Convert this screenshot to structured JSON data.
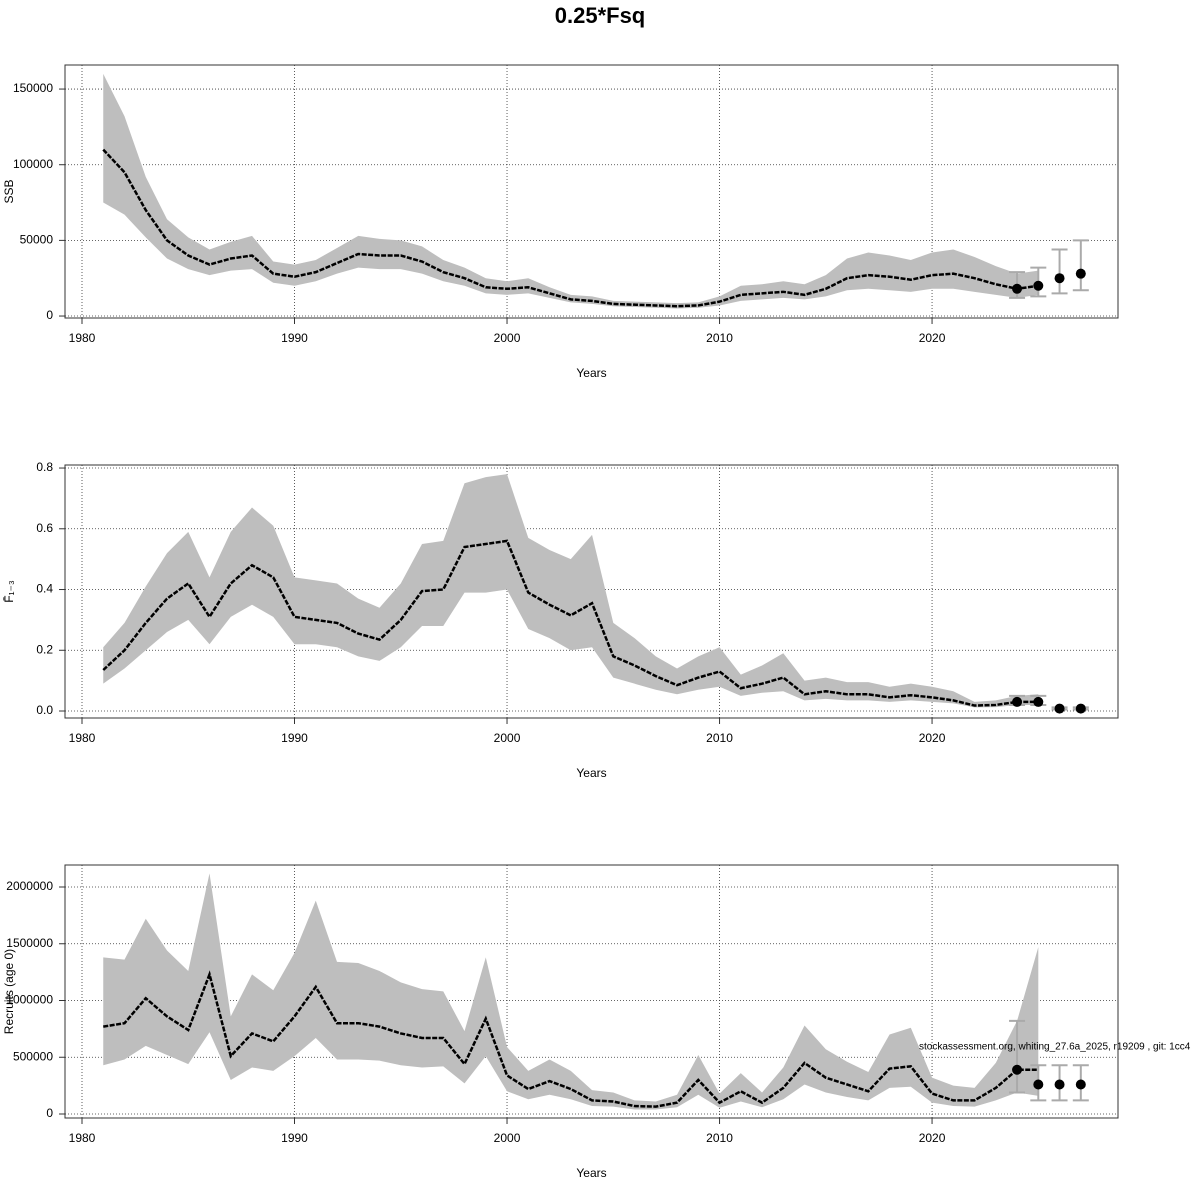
{
  "title": "0.25*Fsq",
  "chart_data": [
    {
      "type": "line",
      "ylabel": "SSB",
      "xlabel": "Years",
      "xlim": [
        1979.2,
        2028.75
      ],
      "ylim": [
        -1300,
        165900
      ],
      "xticks": [
        1980,
        1990,
        2000,
        2010,
        2020
      ],
      "yticks": [
        0,
        50000,
        100000,
        150000
      ],
      "grid": true,
      "band_color": "#bebebe",
      "line_color": "#000000",
      "point_color": "#000000",
      "errorbar_color": "#aaaaaa",
      "x": [
        1981,
        1982,
        1983,
        1984,
        1985,
        1986,
        1987,
        1988,
        1989,
        1990,
        1991,
        1992,
        1993,
        1994,
        1995,
        1996,
        1997,
        1998,
        1999,
        2000,
        2001,
        2002,
        2003,
        2004,
        2005,
        2006,
        2007,
        2008,
        2009,
        2010,
        2011,
        2012,
        2013,
        2014,
        2015,
        2016,
        2017,
        2018,
        2019,
        2020,
        2021,
        2022,
        2023,
        2024,
        2025
      ],
      "values": [
        110000,
        95000,
        70000,
        50000,
        40000,
        34000,
        38000,
        40000,
        28000,
        26000,
        29000,
        35000,
        41000,
        40000,
        40000,
        36000,
        29000,
        25000,
        19000,
        18000,
        19000,
        15000,
        11000,
        10000,
        8000,
        7500,
        7000,
        6500,
        7000,
        9500,
        14000,
        15000,
        16000,
        14000,
        18000,
        25000,
        27000,
        26000,
        24000,
        27000,
        28000,
        25000,
        21000,
        18000,
        20000
      ],
      "lower": [
        75000,
        67000,
        52000,
        38000,
        31000,
        27000,
        30000,
        31000,
        22000,
        20000,
        23000,
        28000,
        32000,
        31000,
        31000,
        28000,
        23000,
        20000,
        15000,
        14000,
        15000,
        12000,
        9000,
        8000,
        6500,
        6000,
        5500,
        5000,
        5500,
        7000,
        10000,
        11000,
        12000,
        11000,
        13000,
        17000,
        18000,
        17000,
        16000,
        18000,
        18000,
        16000,
        14000,
        12000,
        14000
      ],
      "upper": [
        160000,
        132000,
        92000,
        64000,
        52000,
        44000,
        49000,
        53000,
        36000,
        34000,
        37000,
        45000,
        53000,
        51000,
        50000,
        46000,
        37000,
        32000,
        25000,
        23000,
        25000,
        19000,
        14000,
        13000,
        10000,
        9500,
        9000,
        8500,
        9000,
        13000,
        20000,
        21000,
        23000,
        21000,
        27000,
        38000,
        42000,
        40000,
        37000,
        42000,
        44000,
        39000,
        33000,
        28000,
        30000
      ],
      "forecast": {
        "x": [
          2024,
          2025,
          2026,
          2027
        ],
        "values": [
          18000,
          20000,
          25000,
          28000
        ],
        "lower": [
          12000,
          13000,
          15000,
          17000
        ],
        "upper": [
          29000,
          32000,
          44000,
          50000
        ]
      }
    },
    {
      "type": "line",
      "ylabel": "F̄₁₋₃",
      "xlabel": "Years",
      "xlim": [
        1979.2,
        2028.75
      ],
      "ylim": [
        -0.023,
        0.81
      ],
      "xticks": [
        1980,
        1990,
        2000,
        2010,
        2020
      ],
      "yticks": [
        {
          "value": 0,
          "label": "0.0"
        },
        0.2,
        0.4,
        0.6,
        0.8
      ],
      "grid": true,
      "band_color": "#bebebe",
      "line_color": "#000000",
      "point_color": "#000000",
      "errorbar_color": "#aaaaaa",
      "x": [
        1981,
        1982,
        1983,
        1984,
        1985,
        1986,
        1987,
        1988,
        1989,
        1990,
        1991,
        1992,
        1993,
        1994,
        1995,
        1996,
        1997,
        1998,
        1999,
        2000,
        2001,
        2002,
        2003,
        2004,
        2005,
        2006,
        2007,
        2008,
        2009,
        2010,
        2011,
        2012,
        2013,
        2014,
        2015,
        2016,
        2017,
        2018,
        2019,
        2020,
        2021,
        2022,
        2023,
        2024,
        2025
      ],
      "values": [
        0.135,
        0.2,
        0.29,
        0.37,
        0.42,
        0.31,
        0.42,
        0.48,
        0.44,
        0.31,
        0.3,
        0.29,
        0.255,
        0.235,
        0.3,
        0.395,
        0.4,
        0.54,
        0.55,
        0.56,
        0.39,
        0.35,
        0.315,
        0.355,
        0.18,
        0.15,
        0.115,
        0.085,
        0.11,
        0.13,
        0.075,
        0.09,
        0.11,
        0.055,
        0.065,
        0.055,
        0.055,
        0.045,
        0.052,
        0.045,
        0.035,
        0.018,
        0.02,
        0.03,
        0.03
      ],
      "lower": [
        0.09,
        0.14,
        0.2,
        0.26,
        0.3,
        0.22,
        0.31,
        0.35,
        0.31,
        0.22,
        0.22,
        0.21,
        0.18,
        0.165,
        0.21,
        0.28,
        0.28,
        0.39,
        0.39,
        0.4,
        0.27,
        0.24,
        0.2,
        0.21,
        0.11,
        0.09,
        0.07,
        0.055,
        0.07,
        0.08,
        0.05,
        0.06,
        0.065,
        0.035,
        0.04,
        0.035,
        0.035,
        0.03,
        0.035,
        0.03,
        0.025,
        0.012,
        0.013,
        0.02,
        0.02
      ],
      "upper": [
        0.21,
        0.29,
        0.41,
        0.52,
        0.59,
        0.44,
        0.59,
        0.67,
        0.61,
        0.44,
        0.43,
        0.42,
        0.37,
        0.34,
        0.42,
        0.55,
        0.56,
        0.75,
        0.77,
        0.78,
        0.57,
        0.53,
        0.5,
        0.58,
        0.29,
        0.24,
        0.18,
        0.14,
        0.18,
        0.21,
        0.12,
        0.15,
        0.19,
        0.1,
        0.11,
        0.095,
        0.095,
        0.08,
        0.09,
        0.08,
        0.065,
        0.03,
        0.035,
        0.05,
        0.055
      ],
      "forecast": {
        "x": [
          2024,
          2025,
          2026,
          2027
        ],
        "values": [
          0.03,
          0.03,
          0.008,
          0.008
        ],
        "lower": [
          0.02,
          0.02,
          0.005,
          0.005
        ],
        "upper": [
          0.05,
          0.05,
          0.012,
          0.012
        ]
      }
    },
    {
      "type": "line",
      "ylabel": "Recruits (age 0)",
      "xlabel": "Years",
      "xlim": [
        1979.2,
        2028.75
      ],
      "ylim": [
        -35200,
        2193800
      ],
      "xticks": [
        1980,
        1990,
        2000,
        2010,
        2020
      ],
      "yticks": [
        0,
        500000,
        1000000,
        1500000,
        2000000
      ],
      "grid": true,
      "band_color": "#bebebe",
      "line_color": "#000000",
      "point_color": "#000000",
      "errorbar_color": "#aaaaaa",
      "x": [
        1981,
        1982,
        1983,
        1984,
        1985,
        1986,
        1987,
        1988,
        1989,
        1990,
        1991,
        1992,
        1993,
        1994,
        1995,
        1996,
        1997,
        1998,
        1999,
        2000,
        2001,
        2002,
        2003,
        2004,
        2005,
        2006,
        2007,
        2008,
        2009,
        2010,
        2011,
        2012,
        2013,
        2014,
        2015,
        2016,
        2017,
        2018,
        2019,
        2020,
        2021,
        2022,
        2023,
        2024,
        2025
      ],
      "values": [
        770000,
        800000,
        1020000,
        860000,
        740000,
        1230000,
        510000,
        710000,
        640000,
        860000,
        1120000,
        800000,
        800000,
        770000,
        710000,
        670000,
        670000,
        440000,
        840000,
        340000,
        220000,
        290000,
        220000,
        120000,
        110000,
        70000,
        65000,
        100000,
        300000,
        100000,
        200000,
        100000,
        230000,
        450000,
        320000,
        260000,
        200000,
        400000,
        420000,
        180000,
        120000,
        120000,
        230000,
        390000,
        390000
      ],
      "lower": [
        430000,
        480000,
        600000,
        520000,
        440000,
        720000,
        300000,
        410000,
        380000,
        510000,
        670000,
        480000,
        480000,
        470000,
        430000,
        410000,
        420000,
        270000,
        510000,
        200000,
        130000,
        170000,
        130000,
        70000,
        65000,
        40000,
        40000,
        60000,
        170000,
        55000,
        110000,
        60000,
        130000,
        260000,
        190000,
        150000,
        120000,
        230000,
        240000,
        100000,
        70000,
        65000,
        120000,
        190000,
        160000
      ],
      "upper": [
        1380000,
        1360000,
        1720000,
        1440000,
        1260000,
        2120000,
        860000,
        1230000,
        1090000,
        1420000,
        1880000,
        1340000,
        1330000,
        1260000,
        1160000,
        1100000,
        1080000,
        730000,
        1380000,
        590000,
        380000,
        480000,
        380000,
        210000,
        190000,
        120000,
        110000,
        170000,
        520000,
        180000,
        360000,
        190000,
        410000,
        780000,
        570000,
        460000,
        370000,
        700000,
        760000,
        320000,
        250000,
        230000,
        450000,
        820000,
        1470000
      ],
      "forecast": {
        "x": [
          2024,
          2025,
          2026,
          2027
        ],
        "values": [
          390000,
          260000,
          260000,
          260000
        ],
        "lower": [
          190000,
          120000,
          120000,
          120000
        ],
        "upper": [
          820000,
          430000,
          430000,
          430000
        ]
      },
      "annotation": "stockassessment.org, whiting_27.6a_2025, r19209 , git: 1cc4"
    }
  ]
}
